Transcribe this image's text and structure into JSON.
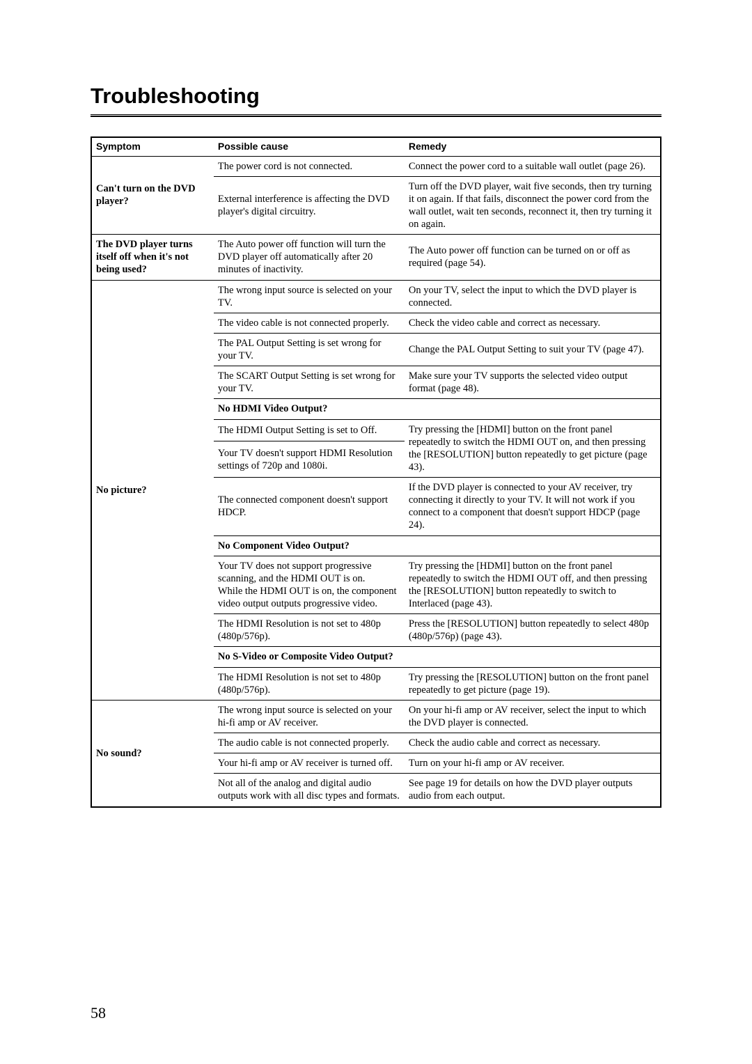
{
  "title": "Troubleshooting",
  "page_number": "58",
  "columns": [
    "Symptom",
    "Possible cause",
    "Remedy"
  ],
  "sections": [
    {
      "symptom": "Can't turn on the DVD player?",
      "rows": [
        {
          "cause": "The power cord is not connected.",
          "remedy": "Connect the power cord to a suitable wall outlet (page 26)."
        },
        {
          "cause": "External interference is affecting the DVD player's digital circuitry.",
          "remedy": "Turn off the DVD player, wait five seconds, then try turning it on again. If that fails, disconnect the power cord from the wall outlet, wait ten seconds, reconnect it, then try turning it on again."
        }
      ]
    },
    {
      "symptom": "The DVD player turns itself off when it's not being used?",
      "rows": [
        {
          "cause": "The Auto power off function will turn the DVD player off automatically after 20 minutes of inactivity.",
          "remedy": "The Auto power off function can be turned on or off as required (page 54)."
        }
      ]
    },
    {
      "symptom": "No picture?",
      "rows": [
        {
          "cause": "The wrong input source is selected on your TV.",
          "remedy": "On your TV, select the input to which the DVD player is connected."
        },
        {
          "cause": "The video cable is not connected properly.",
          "remedy": "Check the video cable and correct as necessary."
        },
        {
          "cause": "The PAL Output Setting is set wrong for your TV.",
          "remedy": "Change the PAL Output Setting to suit your TV (page 47)."
        },
        {
          "cause": "The SCART Output Setting is set wrong for your TV.",
          "remedy": "Make sure your TV supports the selected video output format (page 48)."
        },
        {
          "subheader": "No HDMI Video Output?"
        },
        {
          "cause": "The HDMI Output Setting is set to Off.",
          "remedy_span": "Try pressing the [HDMI] button on the front panel repeatedly to switch the HDMI OUT on, and then pressing the [RESOLUTION] button repeatedly to get picture (page 43).",
          "remedy_rowspan": 2
        },
        {
          "cause": "Your TV doesn't support HDMI Resolution settings of 720p and 1080i."
        },
        {
          "cause": "The connected component doesn't support HDCP.",
          "remedy": "If the DVD player is connected to your AV receiver, try connecting it directly to your TV. It will not work if you connect to a component that doesn't support HDCP (page 24)."
        },
        {
          "subheader": "No Component Video Output?"
        },
        {
          "cause": "Your TV does not support progressive scanning, and the HDMI OUT is on.\nWhile the HDMI OUT is on, the component video output outputs progressive video.",
          "remedy": "Try pressing the [HDMI] button on the front panel repeatedly to switch the HDMI OUT off, and then pressing the [RESOLUTION] button repeatedly to switch to Interlaced (page 43)."
        },
        {
          "cause": "The HDMI Resolution is not set to 480p (480p/576p).",
          "remedy": "Press the [RESOLUTION] button repeatedly to select 480p (480p/576p) (page 43)."
        },
        {
          "subheader": "No S-Video or Composite Video Output?"
        },
        {
          "cause": "The HDMI Resolution is not set to 480p (480p/576p).",
          "remedy": "Try pressing the [RESOLUTION] button on the front panel repeatedly to get picture (page 19)."
        }
      ]
    },
    {
      "symptom": "No sound?",
      "rows": [
        {
          "cause": "The wrong input source is selected on your hi-fi amp or AV receiver.",
          "remedy": "On your hi-fi amp or AV receiver, select the input to which the DVD player is connected."
        },
        {
          "cause": "The audio cable is not connected properly.",
          "remedy": "Check the audio cable and correct as necessary."
        },
        {
          "cause": "Your hi-fi amp or AV receiver is turned off.",
          "remedy": "Turn on your hi-fi amp or AV receiver."
        },
        {
          "cause": "Not all of the analog and digital audio outputs work with all disc types and formats.",
          "remedy": "See page 19 for details on how the DVD player outputs audio from each output."
        }
      ]
    }
  ]
}
